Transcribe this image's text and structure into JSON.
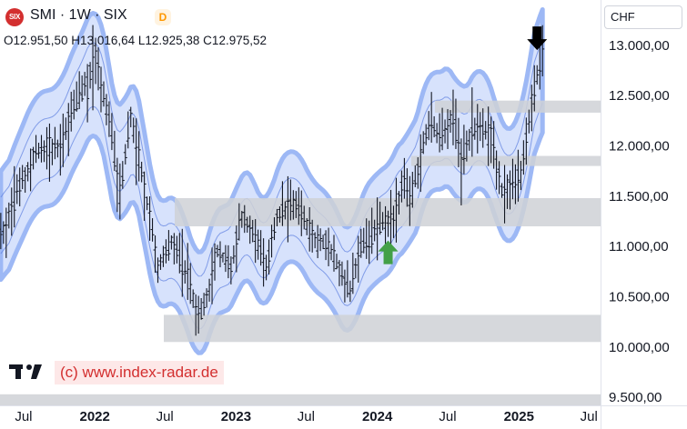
{
  "header": {
    "logo_text": "SIX",
    "title": "SMI · 1W · SIX",
    "badge": "D",
    "ohlc": "O12.951,50 H13.016,64 L12.925,38 C12.975,52"
  },
  "currency": "CHF",
  "watermark": {
    "logo": "tradingview-logo-icon",
    "text": "(c) www.index-radar.de"
  },
  "colors": {
    "band_fill": "#c9d8fb",
    "band_outline": "#9db8f5",
    "inner_line": "#5c7fe0",
    "bars": "#131722",
    "zones": "#cfd1d6",
    "arrow_up": "#43a047",
    "arrow_down": "#000000"
  },
  "chart_data": {
    "type": "line",
    "subtype": "weekly ohlc bars with envelope bands and support/resistance zones",
    "x_ticks": [
      "Jul",
      "2022",
      "Jul",
      "2023",
      "Jul",
      "2024",
      "Jul",
      "2025",
      "Jul"
    ],
    "y_ticks": [
      "13.000,00",
      "12.500,00",
      "12.000,00",
      "11.500,00",
      "11.000,00",
      "10.500,00",
      "10.000,00",
      "9.500,00"
    ],
    "y_tick_values": [
      13000,
      12500,
      12000,
      11500,
      11000,
      10500,
      10000,
      9500
    ],
    "ylim": [
      9420,
      13450
    ],
    "x_range": [
      "2021-05-01",
      "2025-07-31"
    ],
    "x_tick_dates": [
      "2021-07-01",
      "2022-01-01",
      "2022-07-01",
      "2023-01-01",
      "2023-07-01",
      "2024-01-01",
      "2024-07-01",
      "2025-01-01",
      "2025-07-01"
    ],
    "series": [
      {
        "values": [
          [
            "2021-05-03",
            11100
          ],
          [
            "2021-06-01",
            11400
          ],
          [
            "2021-08-02",
            11950
          ],
          [
            "2021-10-01",
            12000
          ],
          [
            "2021-11-15",
            12450
          ],
          [
            "2021-12-13",
            12600
          ],
          [
            "2022-01-03",
            12900
          ],
          [
            "2022-02-14",
            12100
          ],
          [
            "2022-03-07",
            11500
          ],
          [
            "2022-04-04",
            12300
          ],
          [
            "2022-05-09",
            11600
          ],
          [
            "2022-06-13",
            10800
          ],
          [
            "2022-07-18",
            11050
          ],
          [
            "2022-08-29",
            10700
          ],
          [
            "2022-09-26",
            10300
          ],
          [
            "2022-10-17",
            10500
          ],
          [
            "2022-11-14",
            10950
          ],
          [
            "2022-12-19",
            10800
          ],
          [
            "2023-01-16",
            11300
          ],
          [
            "2023-02-20",
            11100
          ],
          [
            "2023-03-20",
            10800
          ],
          [
            "2023-04-17",
            11300
          ],
          [
            "2023-06-05",
            11450
          ],
          [
            "2023-07-17",
            11100
          ],
          [
            "2023-08-28",
            11000
          ],
          [
            "2023-10-23",
            10550
          ],
          [
            "2023-11-20",
            11000
          ],
          [
            "2024-01-01",
            11200
          ],
          [
            "2024-02-12",
            11300
          ],
          [
            "2024-03-11",
            11650
          ],
          [
            "2024-03-25",
            11450
          ],
          [
            "2024-05-13",
            12200
          ],
          [
            "2024-06-17",
            12100
          ],
          [
            "2024-07-15",
            12300
          ],
          [
            "2024-08-05",
            11800
          ],
          [
            "2024-09-02",
            12200
          ],
          [
            "2024-10-21",
            12100
          ],
          [
            "2024-11-18",
            11550
          ],
          [
            "2025-01-06",
            11700
          ],
          [
            "2025-02-03",
            12400
          ],
          [
            "2025-03-03",
            12950
          ]
        ]
      }
    ],
    "zones": [
      {
        "from": 12330,
        "to": 12450
      },
      {
        "from": 11800,
        "to": 11900
      },
      {
        "from": 11200,
        "to": 11480
      },
      {
        "from": 10050,
        "to": 10320
      },
      {
        "from": 9420,
        "to": 9530
      }
    ],
    "annotations": [
      {
        "type": "arrow-up",
        "date": "2024-01-29",
        "value": 10950
      },
      {
        "type": "arrow-down",
        "date": "2025-02-17",
        "value": 13060
      }
    ],
    "grid": false
  }
}
